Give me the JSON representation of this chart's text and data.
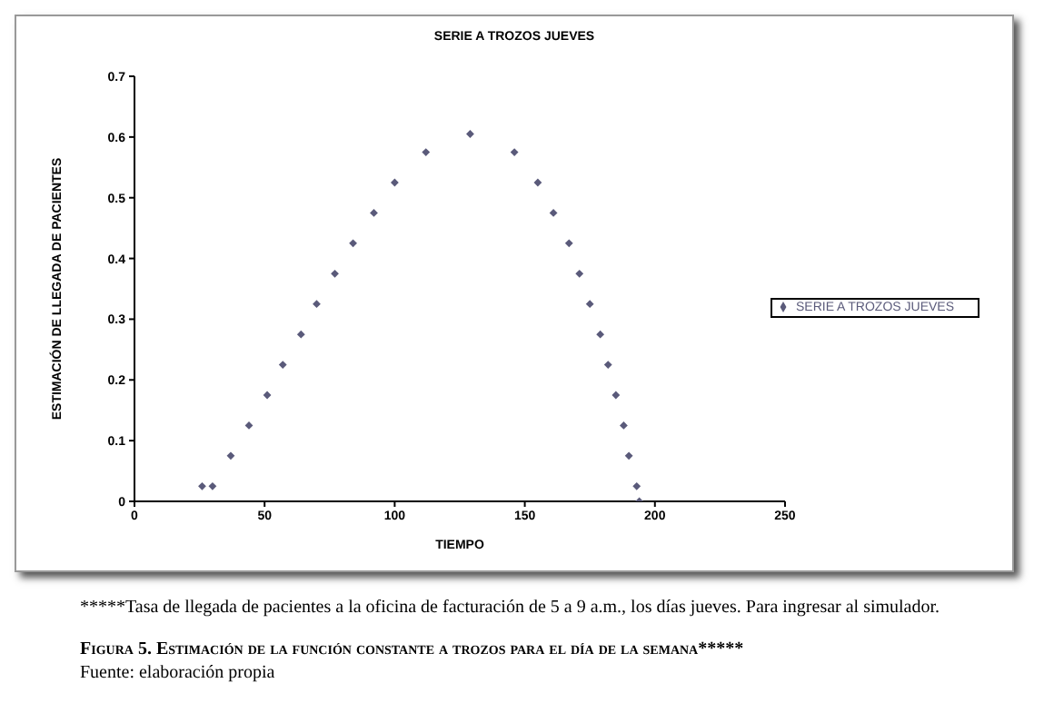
{
  "chart_data": {
    "type": "scatter",
    "title": "SERIE A TROZOS JUEVES",
    "xlabel": "TIEMPO",
    "ylabel": "ESTIMACIÓN DE LLEGADA DE PACIENTES",
    "x": [
      26,
      30,
      37,
      44,
      51,
      57,
      64,
      70,
      77,
      84,
      92,
      100,
      112,
      129,
      146,
      155,
      161,
      167,
      171,
      175,
      179,
      182,
      185,
      188,
      190,
      193,
      194
    ],
    "series": [
      {
        "name": "SERIE A TROZOS JUEVES",
        "color": "#5a5a7a",
        "values": [
          0.025,
          0.025,
          0.075,
          0.125,
          0.175,
          0.225,
          0.275,
          0.325,
          0.375,
          0.425,
          0.475,
          0.525,
          0.575,
          0.605,
          0.575,
          0.525,
          0.475,
          0.425,
          0.375,
          0.325,
          0.275,
          0.225,
          0.175,
          0.125,
          0.075,
          0.025,
          0
        ]
      }
    ],
    "xlim": [
      0,
      250
    ],
    "xticks": [
      0,
      50,
      100,
      150,
      200,
      250
    ],
    "ylim": [
      0,
      0.7
    ],
    "yticks": [
      0,
      0.1,
      0.2,
      0.3,
      0.4,
      0.5,
      0.6,
      0.7
    ],
    "grid": false,
    "legend": "right",
    "marker": "diamond",
    "annotations": [
      "*****Tasa de llegada de pacientes a la oficina de facturación de 5 a 9 a.m., los días jueves. Para ingresar al simulador.",
      "Figura 5. Estimación de la función constante a trozos para el día de la semana*****",
      "Fuente: elaboración propia"
    ]
  }
}
